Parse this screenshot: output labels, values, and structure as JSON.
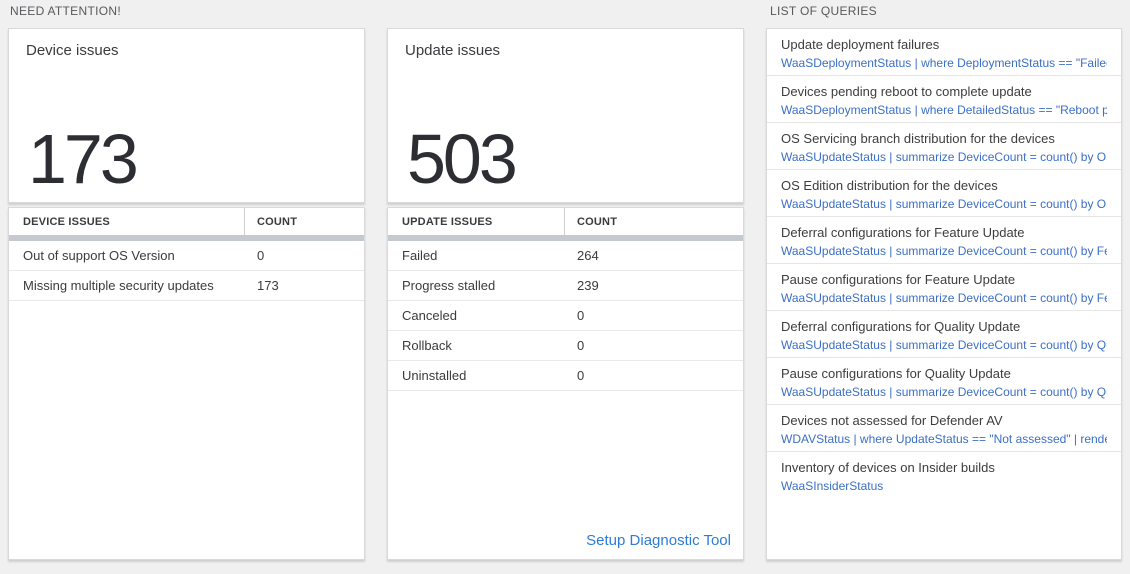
{
  "sections": {
    "need_attention": "NEED ATTENTION!",
    "list_of_queries": "LIST OF QUERIES"
  },
  "device_card": {
    "title": "Device issues",
    "value": "173"
  },
  "update_card": {
    "title": "Update issues",
    "value": "503"
  },
  "device_table": {
    "columns": [
      "DEVICE ISSUES",
      "COUNT"
    ],
    "rows": [
      {
        "issue": "Out of support OS Version",
        "count": "0"
      },
      {
        "issue": "Missing multiple security updates",
        "count": "173"
      }
    ]
  },
  "update_table": {
    "columns": [
      "UPDATE ISSUES",
      "COUNT"
    ],
    "rows": [
      {
        "issue": "Failed",
        "count": "264"
      },
      {
        "issue": "Progress stalled",
        "count": "239"
      },
      {
        "issue": "Canceled",
        "count": "0"
      },
      {
        "issue": "Rollback",
        "count": "0"
      },
      {
        "issue": "Uninstalled",
        "count": "0"
      }
    ],
    "footer_link": "Setup Diagnostic Tool"
  },
  "queries": {
    "items": [
      {
        "title": "Update deployment failures",
        "query": "WaaSDeploymentStatus | where DeploymentStatus == \"Failed\" |..."
      },
      {
        "title": "Devices pending reboot to complete update",
        "query": "WaaSDeploymentStatus | where DetailedStatus == \"Reboot pend..."
      },
      {
        "title": "OS Servicing branch distribution for the devices",
        "query": "WaaSUpdateStatus | summarize DeviceCount = count() by OSSer..."
      },
      {
        "title": "OS Edition distribution for the devices",
        "query": "WaaSUpdateStatus | summarize DeviceCount = count() by OSEdit..."
      },
      {
        "title": "Deferral configurations for Feature Update",
        "query": "WaaSUpdateStatus | summarize DeviceCount = count() by Featur..."
      },
      {
        "title": "Pause configurations for Feature Update",
        "query": "WaaSUpdateStatus | summarize DeviceCount = count() by Featur..."
      },
      {
        "title": "Deferral configurations for Quality Update",
        "query": "WaaSUpdateStatus | summarize DeviceCount = count() by Qualit..."
      },
      {
        "title": "Pause configurations for Quality Update",
        "query": "WaaSUpdateStatus | summarize DeviceCount = count() by Qualit..."
      },
      {
        "title": "Devices not assessed for Defender AV",
        "query": "WDAVStatus | where UpdateStatus == \"Not assessed\" | render ta..."
      },
      {
        "title": "Inventory of devices on Insider builds",
        "query": "WaaSInsiderStatus"
      }
    ]
  },
  "colors": {
    "query_link_blue": "#3b6fc6",
    "footer_link_blue": "#2e7cd6",
    "page_background": "#f0f0f1",
    "scrollbar_gray": "#c5cad0"
  }
}
